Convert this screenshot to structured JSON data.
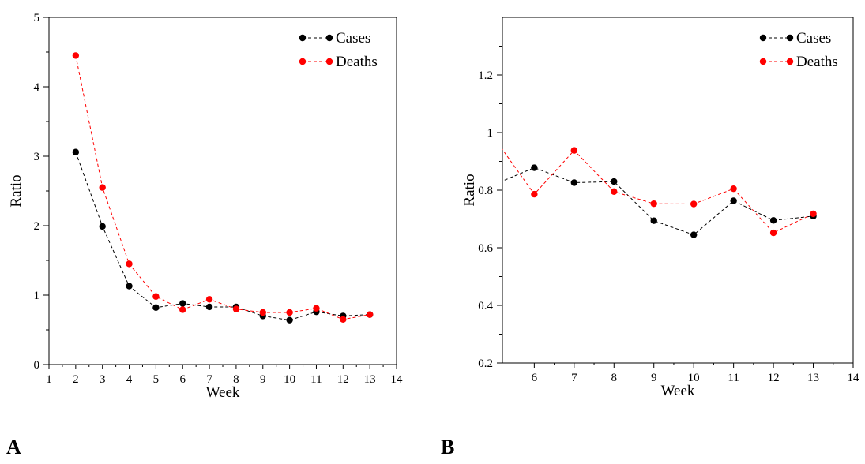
{
  "panels": [
    {
      "letter": "A"
    },
    {
      "letter": "B"
    }
  ],
  "chart_data": [
    {
      "type": "line",
      "title": "",
      "xlabel": "Week",
      "ylabel": "Ratio",
      "xlim": [
        1,
        14
      ],
      "ylim": [
        0,
        5
      ],
      "xticks": [
        "1",
        "2",
        "3",
        "4",
        "5",
        "6",
        "7",
        "8",
        "9",
        "10",
        "11",
        "12",
        "13",
        "14"
      ],
      "yticks": [
        "0",
        "1",
        "2",
        "3",
        "4",
        "5"
      ],
      "grid": false,
      "legend_position": "top-right",
      "x": [
        2,
        3,
        4,
        5,
        6,
        7,
        8,
        9,
        10,
        11,
        12,
        13
      ],
      "series": [
        {
          "name": "Cases",
          "color": "#000000",
          "values": [
            3.06,
            1.99,
            1.13,
            0.82,
            0.88,
            0.83,
            0.83,
            0.7,
            0.64,
            0.76,
            0.7,
            0.72
          ]
        },
        {
          "name": "Deaths",
          "color": "#ff0000",
          "values": [
            4.45,
            2.55,
            1.45,
            0.98,
            0.79,
            0.94,
            0.8,
            0.75,
            0.75,
            0.81,
            0.65,
            0.72
          ]
        }
      ]
    },
    {
      "type": "line",
      "title": "",
      "xlabel": "Week",
      "ylabel": "Ratio",
      "xlim": [
        5.2,
        14
      ],
      "ylim": [
        0.2,
        1.4
      ],
      "xticks": [
        "6",
        "7",
        "8",
        "9",
        "10",
        "11",
        "12",
        "13",
        "14"
      ],
      "yticks": [
        "0.2",
        "0.4",
        "0.6",
        "0.8",
        "1",
        "1.2"
      ],
      "grid": false,
      "legend_position": "top-right",
      "x": [
        5,
        6,
        7,
        8,
        9,
        10,
        11,
        12,
        13
      ],
      "series": [
        {
          "name": "Cases",
          "color": "#000000",
          "values": [
            0.82,
            0.878,
            0.826,
            0.83,
            0.694,
            0.645,
            0.763,
            0.695,
            0.71
          ]
        },
        {
          "name": "Deaths",
          "color": "#ff0000",
          "values": [
            0.98,
            0.786,
            0.938,
            0.795,
            0.753,
            0.752,
            0.805,
            0.652,
            0.718
          ]
        }
      ]
    }
  ]
}
